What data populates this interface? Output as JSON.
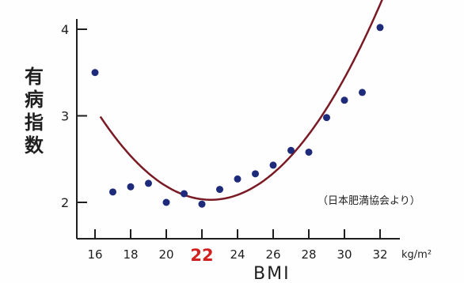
{
  "chart_data": {
    "type": "scatter",
    "ylabel": "有病指数",
    "xlabel": "BMI",
    "x_unit": "kg/m²",
    "source_note": "（日本肥満協会より）",
    "xlim": [
      15,
      34
    ],
    "ylim": [
      1.5,
      4.2
    ],
    "x_ticks": [
      "16",
      "18",
      "20",
      "22",
      "24",
      "26",
      "28",
      "30",
      "32"
    ],
    "y_ticks": [
      "2",
      "3",
      "4"
    ],
    "highlight_x": "22",
    "grid": false,
    "series": [
      {
        "points": [
          [
            16,
            3.5
          ],
          [
            17,
            2.12
          ],
          [
            18,
            2.18
          ],
          [
            19,
            2.22
          ],
          [
            20,
            2.0
          ],
          [
            21,
            2.1
          ],
          [
            22,
            1.98
          ],
          [
            23,
            2.15
          ],
          [
            24,
            2.27
          ],
          [
            25,
            2.33
          ],
          [
            26,
            2.43
          ],
          [
            27,
            2.6
          ],
          [
            28,
            2.58
          ],
          [
            29,
            2.98
          ],
          [
            30,
            3.18
          ],
          [
            31,
            3.27
          ],
          [
            32,
            4.02
          ]
        ]
      }
    ],
    "fit_curve": {
      "type": "quadratic",
      "vertex": [
        22.5,
        2.03
      ],
      "a": 0.025,
      "x_range": [
        16.3,
        33.3
      ]
    },
    "colors": {
      "points": "#1e2a7a",
      "curve": "#7a1a24",
      "axis": "#1f1f1f",
      "highlight": "#d22020"
    }
  }
}
